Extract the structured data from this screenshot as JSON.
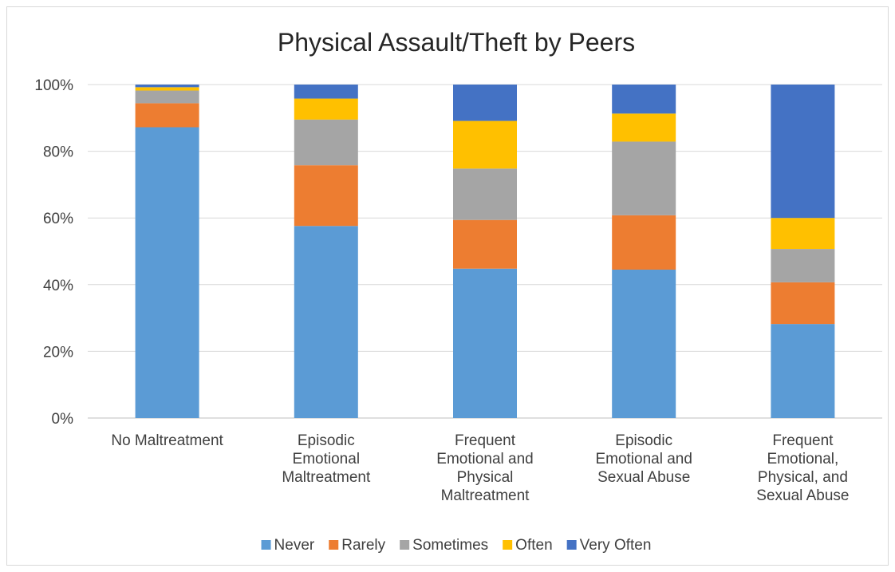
{
  "chart_data": {
    "type": "bar",
    "stacked": true,
    "normalized": true,
    "title": "Physical Assault/Theft by Peers",
    "xlabel": "",
    "ylabel": "",
    "ylim": [
      0,
      100
    ],
    "yticks": [
      "0%",
      "20%",
      "40%",
      "60%",
      "80%",
      "100%"
    ],
    "grid": true,
    "legend": "bottom",
    "categories": [
      [
        "No Maltreatment"
      ],
      [
        "Episodic",
        "Emotional",
        "Maltreatment"
      ],
      [
        "Frequent",
        "Emotional and",
        "Physical",
        "Maltreatment"
      ],
      [
        "Episodic",
        "Emotional and",
        "Sexual Abuse"
      ],
      [
        "Frequent",
        "Emotional,",
        "Physical, and",
        "Sexual Abuse"
      ]
    ],
    "series": [
      {
        "name": "Never",
        "color": "#5b9bd5",
        "values": [
          87.2,
          57.6,
          44.8,
          44.5,
          28.2
        ]
      },
      {
        "name": "Rarely",
        "color": "#ed7d31",
        "values": [
          7.2,
          18.2,
          14.6,
          16.3,
          12.5
        ]
      },
      {
        "name": "Sometimes",
        "color": "#a5a5a5",
        "values": [
          3.8,
          13.7,
          15.4,
          22.1,
          10.0
        ]
      },
      {
        "name": "Often",
        "color": "#ffc000",
        "values": [
          1.0,
          6.3,
          14.3,
          8.4,
          9.3
        ]
      },
      {
        "name": "Very Often",
        "color": "#4472c4",
        "values": [
          0.8,
          4.2,
          10.9,
          8.7,
          40.0
        ]
      }
    ]
  }
}
